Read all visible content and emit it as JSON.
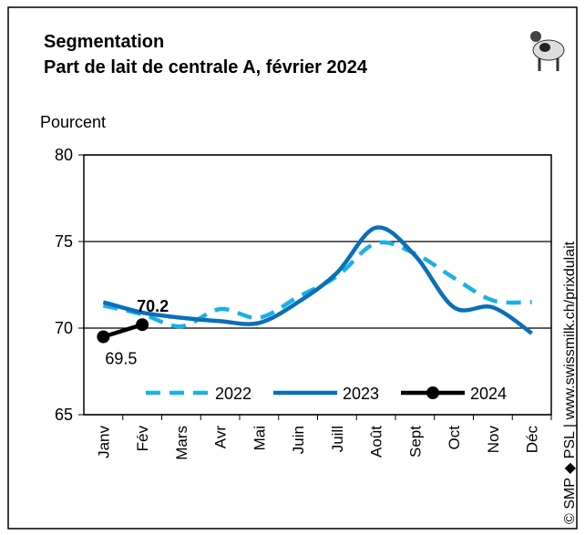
{
  "chart_data": {
    "type": "line",
    "title": "Segmentation",
    "subtitle": "Part de lait de centrale A, février 2024",
    "y_label": "Pourcent",
    "source": "© SMP ◆ PSL | www.swissmilk.ch/prixdulait",
    "categories": [
      "Janv",
      "Fév",
      "Mars",
      "Avr",
      "Mai",
      "Juin",
      "Juill",
      "Août",
      "Sept",
      "Oct",
      "Nov",
      "Déc"
    ],
    "ylim": [
      65,
      80
    ],
    "yticks": [
      65,
      70,
      75,
      80
    ],
    "grid": true,
    "legend": "bottom",
    "series": [
      {
        "name": "2022",
        "color": "#1ab0e8",
        "dashed": true,
        "values": [
          71.3,
          70.8,
          70.1,
          71.1,
          70.6,
          71.8,
          73.0,
          74.9,
          74.3,
          72.9,
          71.6,
          71.5
        ]
      },
      {
        "name": "2023",
        "color": "#0a6fb8",
        "dashed": false,
        "values": [
          71.5,
          70.9,
          70.6,
          70.4,
          70.3,
          71.5,
          73.2,
          75.8,
          74.2,
          71.2,
          71.2,
          69.7
        ]
      },
      {
        "name": "2024",
        "color": "#000000",
        "dashed": false,
        "markers": true,
        "data_labels": true,
        "values": [
          69.5,
          70.2,
          null,
          null,
          null,
          null,
          null,
          null,
          null,
          null,
          null,
          null
        ]
      }
    ]
  }
}
